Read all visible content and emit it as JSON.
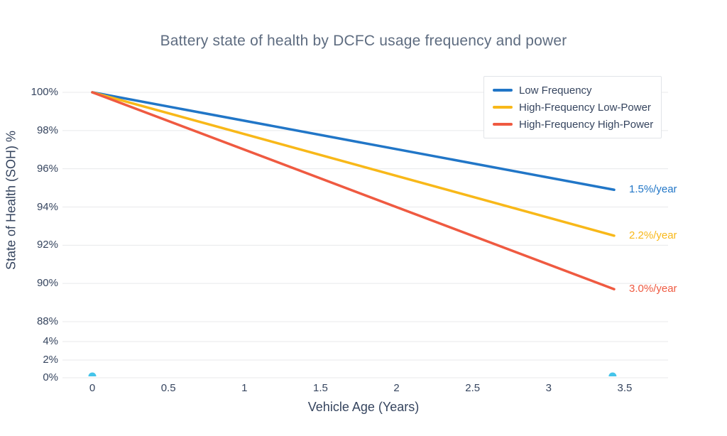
{
  "chart_data": {
    "type": "line",
    "title": "Battery state of health by DCFC usage frequency and power",
    "xlabel": "Vehicle Age (Years)",
    "ylabel": "State of Health (SOH) %",
    "x_ticks": [
      "0",
      "0.5",
      "1",
      "1.5",
      "2",
      "2.5",
      "3",
      "3.5"
    ],
    "y_ticks": [
      "100%",
      "98%",
      "96%",
      "94%",
      "92%",
      "90%",
      "88%",
      "4%",
      "2%",
      "0%"
    ],
    "xlim": [
      0,
      3.5
    ],
    "grid": true,
    "legend_position": "top-right",
    "series": [
      {
        "name": "Low Frequency",
        "color": "#2176c7",
        "x": [
          0,
          3.43
        ],
        "y": [
          100,
          94.9
        ]
      },
      {
        "name": "High-Frequency Low-Power",
        "color": "#f8b819",
        "x": [
          0,
          3.43
        ],
        "y": [
          100,
          92.5
        ]
      },
      {
        "name": "High-Frequency High-Power",
        "color": "#ef5a41",
        "x": [
          0,
          3.43
        ],
        "y": [
          100,
          89.7
        ]
      }
    ],
    "annotations": [
      {
        "text": "1.5%/year",
        "color": "#2176c7"
      },
      {
        "text": "2.2%/year",
        "color": "#f8b819"
      },
      {
        "text": "3.0%/year",
        "color": "#ef5a41"
      }
    ],
    "markers": {
      "color": "#45c4ea",
      "points": [
        {
          "x": 0,
          "y": 0
        },
        {
          "x": 3.42,
          "y": 0
        }
      ]
    },
    "colors": {
      "grid": "#e8e9eb",
      "tick_text": "#36455f",
      "title_text": "#5e6c80"
    }
  }
}
